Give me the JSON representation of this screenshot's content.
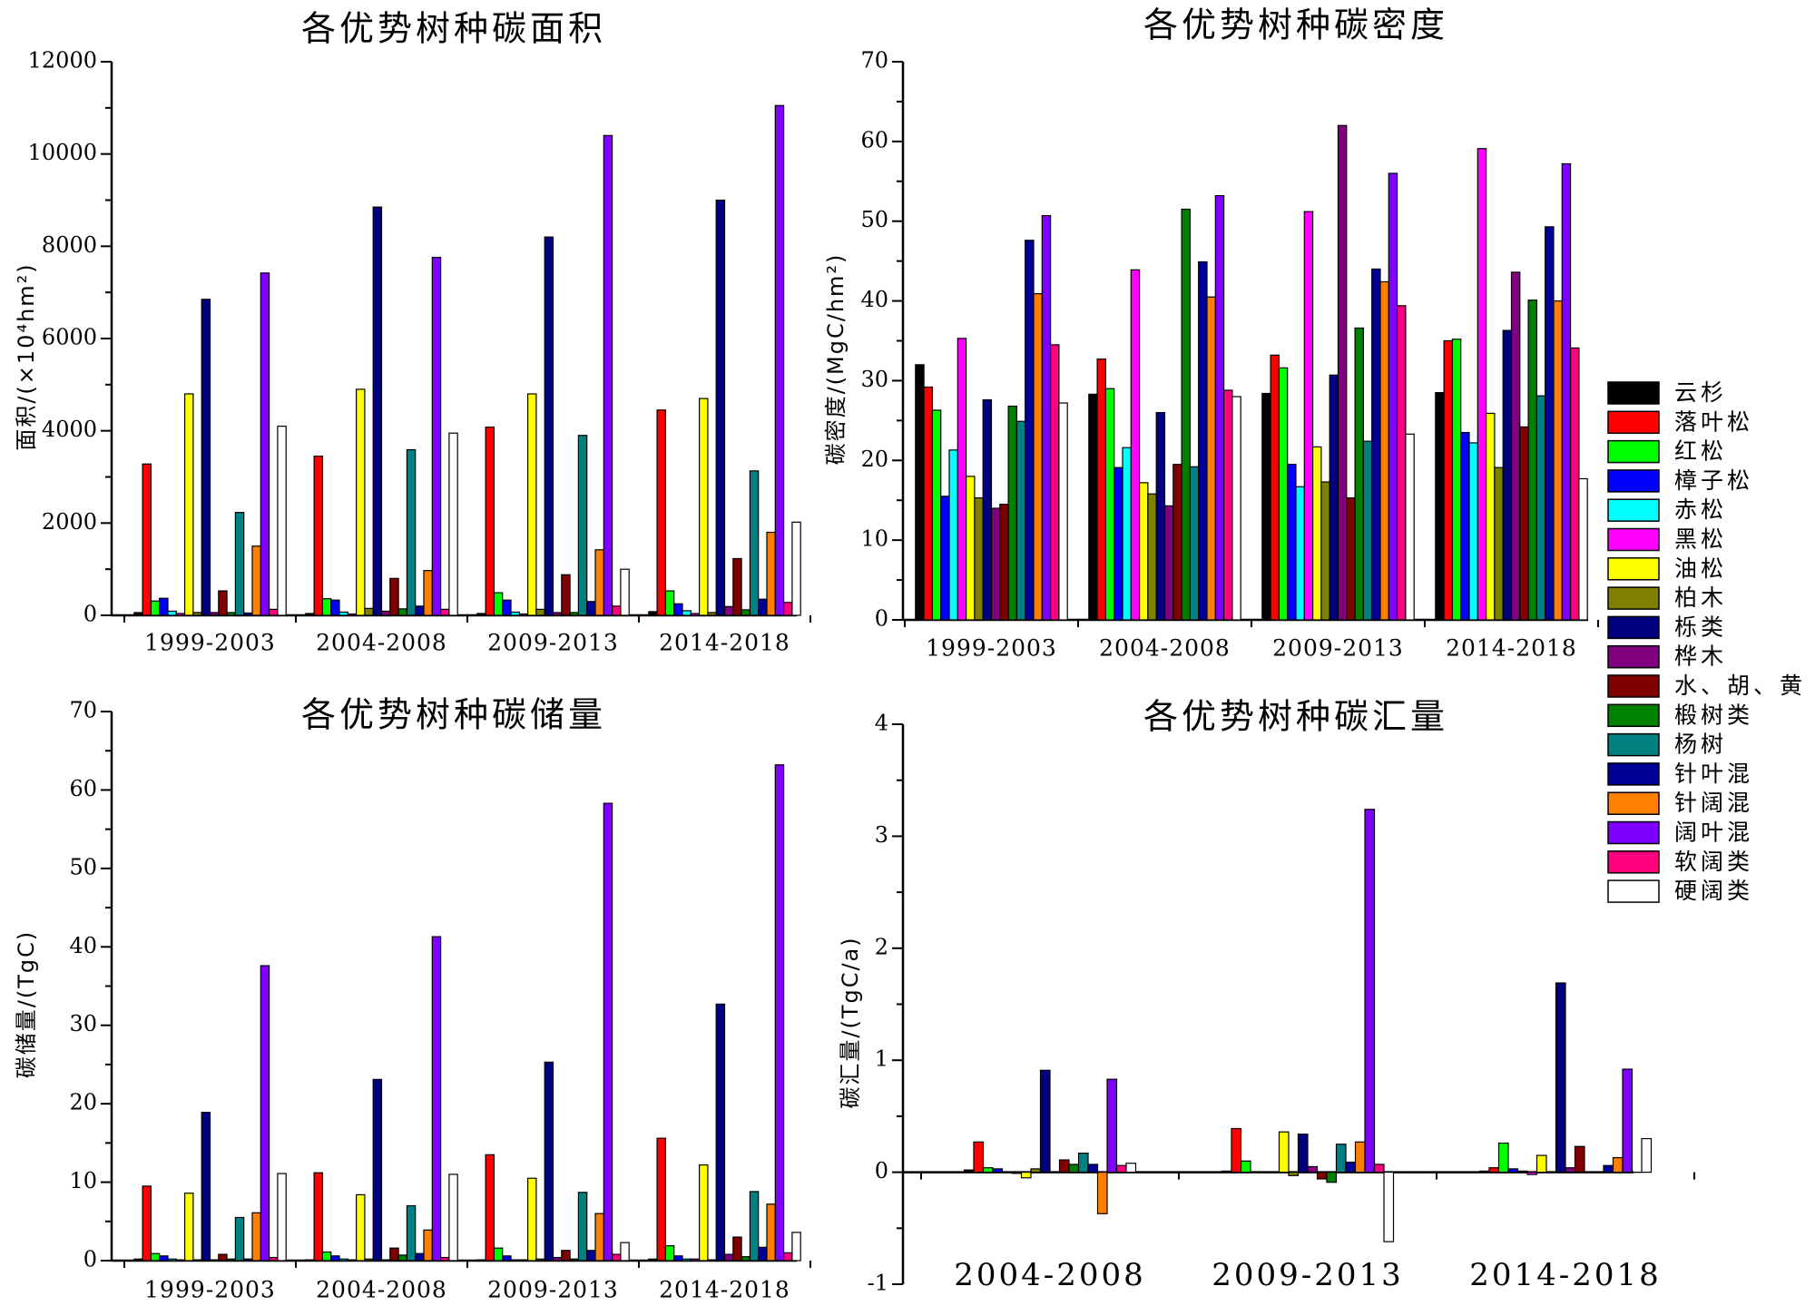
{
  "legend": {
    "items": [
      {
        "name": "云杉",
        "color": "#000000"
      },
      {
        "name": "落叶松",
        "color": "#ff0000"
      },
      {
        "name": "红松",
        "color": "#00ff00"
      },
      {
        "name": "樟子松",
        "color": "#0000ff"
      },
      {
        "name": "赤松",
        "color": "#00ffff"
      },
      {
        "name": "黑松",
        "color": "#ff00ff"
      },
      {
        "name": "油松",
        "color": "#ffff00"
      },
      {
        "name": "柏木",
        "color": "#808000"
      },
      {
        "name": "栎类",
        "color": "#000080"
      },
      {
        "name": "桦木",
        "color": "#800080"
      },
      {
        "name": "水、胡、黄",
        "color": "#800000"
      },
      {
        "name": "椴树类",
        "color": "#008000"
      },
      {
        "name": "杨树",
        "color": "#008080"
      },
      {
        "name": "针叶混",
        "color": "#000099"
      },
      {
        "name": "针阔混",
        "color": "#ff8000"
      },
      {
        "name": "阔叶混",
        "color": "#8000ff"
      },
      {
        "name": "软阔类",
        "color": "#ff0080"
      },
      {
        "name": "硬阔类",
        "color": "#ffffff"
      }
    ]
  },
  "chart_data": [
    {
      "type": "bar",
      "title": "各优势树种碳面积",
      "ylabel_main": "面积/",
      "ylabel_unit": "(×10⁴hm²)",
      "ylim": [
        0,
        12000
      ],
      "yticks": [
        0,
        2000,
        4000,
        6000,
        8000,
        10000,
        12000
      ],
      "categories": [
        "1999-2003",
        "2004-2008",
        "2009-2013",
        "2014-2018"
      ],
      "values": [
        [
          60,
          3280,
          310,
          370,
          90,
          40,
          4800,
          60,
          6850,
          60,
          530,
          60,
          2230,
          50,
          1500,
          7420,
          130,
          4100
        ],
        [
          40,
          3450,
          360,
          330,
          70,
          30,
          4900,
          150,
          8850,
          90,
          800,
          140,
          3590,
          200,
          970,
          7760,
          130,
          3950
        ],
        [
          40,
          4080,
          490,
          330,
          70,
          30,
          4800,
          130,
          8200,
          60,
          880,
          60,
          3900,
          300,
          1420,
          10400,
          200,
          1000
        ],
        [
          80,
          4450,
          530,
          250,
          100,
          40,
          4700,
          60,
          9000,
          190,
          1230,
          120,
          3130,
          350,
          1800,
          11050,
          280,
          2020
        ]
      ]
    },
    {
      "type": "bar",
      "title": "各优势树种碳密度",
      "ylabel_main": "碳密度/",
      "ylabel_unit": "(MgC/hm²)",
      "ylim": [
        0,
        70
      ],
      "yticks": [
        0,
        10,
        20,
        30,
        40,
        50,
        60,
        70
      ],
      "categories": [
        "1999-2003",
        "2004-2008",
        "2009-2013",
        "2014-2018"
      ],
      "values": [
        [
          32.0,
          29.2,
          26.3,
          15.5,
          21.3,
          35.3,
          18.0,
          15.3,
          27.6,
          14.0,
          14.5,
          26.8,
          24.9,
          47.6,
          40.9,
          50.7,
          34.5,
          27.2
        ],
        [
          28.3,
          32.7,
          29.0,
          19.1,
          21.6,
          43.9,
          17.2,
          15.8,
          26.0,
          14.3,
          19.5,
          51.5,
          19.2,
          44.9,
          40.5,
          53.2,
          28.8,
          28.0
        ],
        [
          28.4,
          33.2,
          31.6,
          19.5,
          16.7,
          51.2,
          21.7,
          17.3,
          30.7,
          62.0,
          15.3,
          36.6,
          22.4,
          44.0,
          42.4,
          56.0,
          39.4,
          23.3
        ],
        [
          28.5,
          35.0,
          35.2,
          23.5,
          22.2,
          59.1,
          25.9,
          19.1,
          36.3,
          43.6,
          24.2,
          40.1,
          28.1,
          49.3,
          40.0,
          57.2,
          34.1,
          17.7
        ]
      ]
    },
    {
      "type": "bar",
      "title": "各优势树种碳储量",
      "ylabel_main": "碳储量/",
      "ylabel_unit": "(TgC)",
      "ylim": [
        0,
        70
      ],
      "yticks": [
        0,
        10,
        20,
        30,
        40,
        50,
        60,
        70
      ],
      "categories": [
        "1999-2003",
        "2004-2008",
        "2009-2013",
        "2014-2018"
      ],
      "values": [
        [
          0.2,
          9.5,
          0.9,
          0.6,
          0.2,
          0.1,
          8.6,
          0.1,
          18.9,
          0.1,
          0.8,
          0.2,
          5.5,
          0.2,
          6.1,
          37.6,
          0.4,
          11.1
        ],
        [
          0.1,
          11.2,
          1.1,
          0.6,
          0.2,
          0.1,
          8.4,
          0.2,
          23.1,
          0.1,
          1.6,
          0.7,
          7.0,
          0.9,
          3.9,
          41.3,
          0.4,
          11.0
        ],
        [
          0.1,
          13.5,
          1.6,
          0.6,
          0.1,
          0.1,
          10.5,
          0.2,
          25.3,
          0.4,
          1.3,
          0.2,
          8.7,
          1.3,
          6.0,
          58.3,
          0.8,
          2.3
        ],
        [
          0.2,
          15.6,
          1.9,
          0.6,
          0.2,
          0.2,
          12.2,
          0.1,
          32.7,
          0.8,
          3.0,
          0.5,
          8.8,
          1.7,
          7.2,
          63.2,
          1.0,
          3.6
        ]
      ]
    },
    {
      "type": "bar",
      "title": "各优势树种碳汇量",
      "ylabel_main": "碳汇量/",
      "ylabel_unit": "(TgC/a)",
      "ylim": [
        -1,
        4
      ],
      "yticks": [
        -1,
        0,
        1,
        2,
        3,
        4
      ],
      "categories": [
        "2004-2008",
        "2009-2013",
        "2014-2018"
      ],
      "values": [
        [
          0.02,
          0.27,
          0.04,
          0.03,
          0.0,
          -0.01,
          -0.05,
          0.03,
          0.91,
          0.0,
          0.11,
          0.07,
          0.17,
          0.07,
          -0.37,
          0.83,
          0.06,
          0.08
        ],
        [
          0.01,
          0.39,
          0.1,
          0.0,
          0.0,
          0.0,
          0.36,
          -0.03,
          0.34,
          0.05,
          -0.06,
          -0.09,
          0.25,
          0.09,
          0.27,
          3.24,
          0.07,
          -0.62
        ],
        [
          0.01,
          0.04,
          0.26,
          0.03,
          0.01,
          -0.02,
          0.15,
          0.0,
          1.69,
          0.04,
          0.23,
          0.0,
          0.0,
          0.06,
          0.13,
          0.92,
          0.0,
          0.3
        ]
      ]
    }
  ]
}
